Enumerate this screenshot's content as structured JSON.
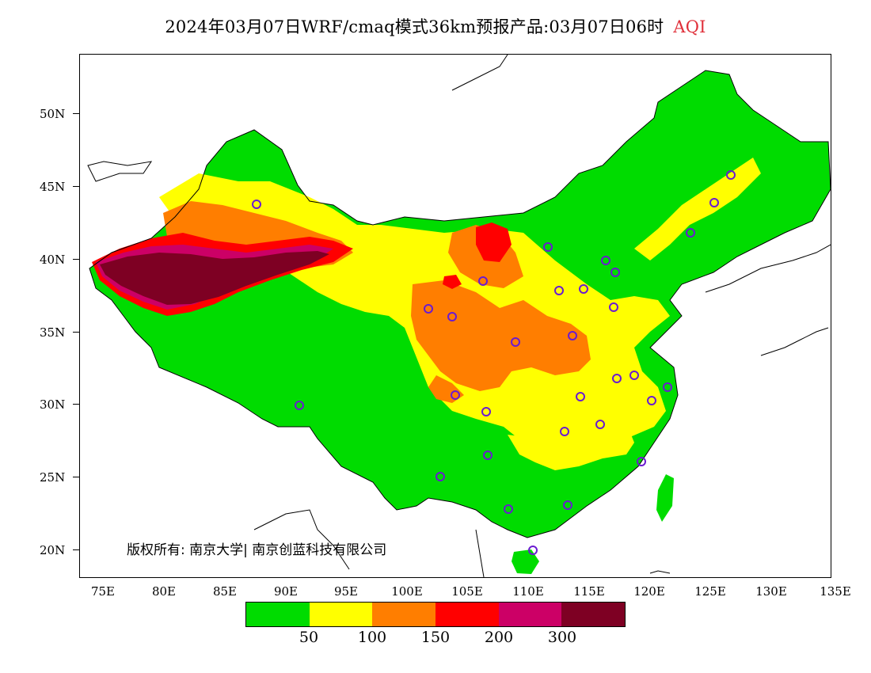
{
  "title": {
    "text": "2024年03月07日WRF/cmaq模式36km预报产品:03月07日06时",
    "product": "AQI"
  },
  "map": {
    "lat_labels": [
      "50N",
      "45N",
      "40N",
      "35N",
      "30N",
      "25N",
      "20N"
    ],
    "lon_labels": [
      "75E",
      "80E",
      "85E",
      "90E",
      "95E",
      "100E",
      "105E",
      "110E",
      "115E",
      "120E",
      "125E",
      "130E",
      "135E"
    ],
    "copyright": "版权所有: 南京大学| 南京创蓝科技有限公司"
  },
  "legend": {
    "colors": [
      "#00dc00",
      "#ffff00",
      "#ff7e00",
      "#ff0000",
      "#cc0066",
      "#7e0023"
    ],
    "labels": [
      "50",
      "100",
      "150",
      "200",
      "300"
    ]
  }
}
